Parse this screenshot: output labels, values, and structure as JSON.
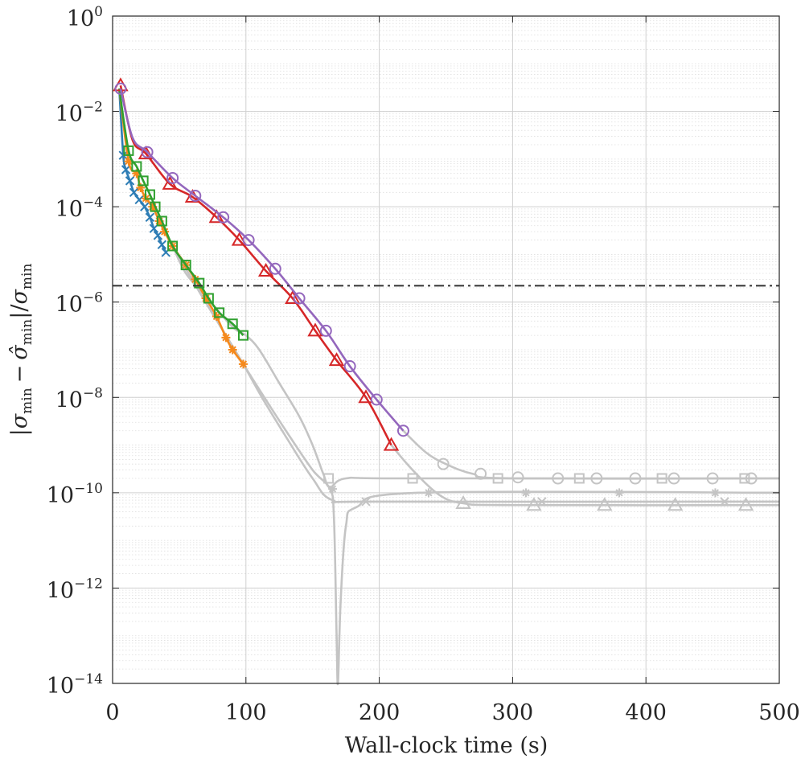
{
  "chart_data": {
    "type": "line",
    "xlabel": "Wall-clock time (s)",
    "ylabel": "|σmin − σ̂min|/σmin",
    "ylabel_parts": {
      "abs": "|",
      "sigma": "σ",
      "sigma_hat": "σ̂",
      "sub": "min",
      "minus": "−",
      "slash": "/"
    },
    "xlim": [
      0,
      500
    ],
    "ylim_log10": [
      -14,
      0
    ],
    "x_ticks": [
      0,
      100,
      200,
      300,
      400,
      500
    ],
    "x_tick_labels": [
      "0",
      "100",
      "200",
      "300",
      "400",
      "500"
    ],
    "y_ticks_log10": [
      0,
      -2,
      -4,
      -6,
      -8,
      -10,
      -12,
      -14
    ],
    "y_tick_labels": [
      "10",
      "10",
      "10",
      "10",
      "10",
      "10",
      "10",
      "10"
    ],
    "y_tick_exponents": [
      "0",
      "−2",
      "−4",
      "−6",
      "−8",
      "−10",
      "−12",
      "−14"
    ],
    "grid": true,
    "minor_grid": true,
    "threshold_line": {
      "y": 2.2e-06,
      "style": "dash-dot",
      "color": "#333333"
    },
    "series": [
      {
        "name": "cross",
        "color": "#2e7db5",
        "marker": "x",
        "points": [
          [
            5,
            0.03
          ],
          [
            8,
            0.0012
          ],
          [
            10,
            0.0006
          ],
          [
            13,
            0.00035
          ],
          [
            16,
            0.0002
          ],
          [
            20,
            0.00014
          ],
          [
            24,
            0.0001
          ],
          [
            28,
            6e-05
          ],
          [
            31,
            3.5e-05
          ],
          [
            34,
            2.5e-05
          ],
          [
            37,
            1.6e-05
          ],
          [
            40,
            1.1e-05
          ]
        ],
        "markers": [
          [
            8,
            0.0012
          ],
          [
            10,
            0.0006
          ],
          [
            13,
            0.00035
          ],
          [
            16,
            0.0002
          ],
          [
            20,
            0.00014
          ],
          [
            24,
            0.0001
          ],
          [
            28,
            6e-05
          ],
          [
            31,
            3.5e-05
          ],
          [
            34,
            2.5e-05
          ],
          [
            37,
            1.6e-05
          ],
          [
            40,
            1.1e-05
          ]
        ]
      },
      {
        "name": "star",
        "color": "#f5891c",
        "marker": "*",
        "points": [
          [
            5,
            0.03
          ],
          [
            12,
            0.0009
          ],
          [
            18,
            0.0005
          ],
          [
            21,
            0.00025
          ],
          [
            25,
            0.00015
          ],
          [
            30,
            0.0001
          ],
          [
            35,
            5e-05
          ],
          [
            39,
            3e-05
          ],
          [
            45,
            1.5e-05
          ],
          [
            55,
            6e-06
          ],
          [
            62,
            3e-06
          ],
          [
            70,
            1.2e-06
          ],
          [
            78,
            5e-07
          ],
          [
            85,
            1.8e-07
          ],
          [
            90,
            1e-07
          ],
          [
            98,
            5e-08
          ]
        ],
        "markers": [
          [
            12,
            0.0009
          ],
          [
            18,
            0.0005
          ],
          [
            21,
            0.00025
          ],
          [
            25,
            0.00015
          ],
          [
            30,
            0.0001
          ],
          [
            35,
            5e-05
          ],
          [
            39,
            3e-05
          ],
          [
            45,
            1.5e-05
          ],
          [
            55,
            6e-06
          ],
          [
            62,
            3e-06
          ],
          [
            70,
            1.2e-06
          ],
          [
            78,
            5e-07
          ],
          [
            85,
            1.8e-07
          ],
          [
            90,
            1e-07
          ],
          [
            98,
            5e-08
          ]
        ]
      },
      {
        "name": "square",
        "color": "#2fa02f",
        "marker": "square",
        "points": [
          [
            5,
            0.03
          ],
          [
            12,
            0.0015
          ],
          [
            18,
            0.0007
          ],
          [
            23,
            0.00035
          ],
          [
            28,
            0.00018
          ],
          [
            32,
            0.0001
          ],
          [
            37,
            5e-05
          ],
          [
            45,
            1.5e-05
          ],
          [
            55,
            6e-06
          ],
          [
            65,
            2.5e-06
          ],
          [
            72,
            1.2e-06
          ],
          [
            80,
            6e-07
          ],
          [
            90,
            3.5e-07
          ],
          [
            98,
            2e-07
          ]
        ],
        "markers": [
          [
            12,
            0.0015
          ],
          [
            18,
            0.0007
          ],
          [
            23,
            0.00035
          ],
          [
            28,
            0.00018
          ],
          [
            32,
            0.0001
          ],
          [
            37,
            5e-05
          ],
          [
            45,
            1.5e-05
          ],
          [
            55,
            6e-06
          ],
          [
            65,
            2.5e-06
          ],
          [
            72,
            1.2e-06
          ],
          [
            80,
            6e-07
          ],
          [
            90,
            3.5e-07
          ],
          [
            98,
            2e-07
          ]
        ]
      },
      {
        "name": "triangle",
        "color": "#d62728",
        "marker": "triangle",
        "points": [
          [
            6,
            0.035
          ],
          [
            15,
            0.0025
          ],
          [
            25,
            0.0013
          ],
          [
            43,
            0.0003
          ],
          [
            60,
            0.00016
          ],
          [
            78,
            6e-05
          ],
          [
            95,
            2e-05
          ],
          [
            115,
            4.5e-06
          ],
          [
            135,
            1.2e-06
          ],
          [
            152,
            2.5e-07
          ],
          [
            168,
            6e-08
          ],
          [
            190,
            1e-08
          ],
          [
            209,
            1e-09
          ]
        ],
        "markers": [
          [
            6,
            0.035
          ],
          [
            25,
            0.0013
          ],
          [
            43,
            0.0003
          ],
          [
            60,
            0.00016
          ],
          [
            78,
            6e-05
          ],
          [
            95,
            2e-05
          ],
          [
            115,
            4.5e-06
          ],
          [
            135,
            1.2e-06
          ],
          [
            152,
            2.5e-07
          ],
          [
            168,
            6e-08
          ],
          [
            190,
            1e-08
          ],
          [
            209,
            1e-09
          ]
        ]
      },
      {
        "name": "circle",
        "color": "#9467bd",
        "marker": "circle",
        "points": [
          [
            6,
            0.03
          ],
          [
            15,
            0.0028
          ],
          [
            26,
            0.0014
          ],
          [
            45,
            0.0004
          ],
          [
            62,
            0.00017
          ],
          [
            83,
            6e-05
          ],
          [
            102,
            2e-05
          ],
          [
            122,
            5e-06
          ],
          [
            140,
            1.2e-06
          ],
          [
            160,
            2.5e-07
          ],
          [
            178,
            4.5e-08
          ],
          [
            198,
            9e-09
          ],
          [
            218,
            2e-09
          ]
        ],
        "markers": [
          [
            6,
            0.03
          ],
          [
            26,
            0.0014
          ],
          [
            45,
            0.0004
          ],
          [
            62,
            0.00017
          ],
          [
            83,
            6e-05
          ],
          [
            102,
            2e-05
          ],
          [
            122,
            5e-06
          ],
          [
            140,
            1.2e-06
          ],
          [
            160,
            2.5e-07
          ],
          [
            178,
            4.5e-08
          ],
          [
            198,
            9e-09
          ],
          [
            218,
            2e-09
          ]
        ]
      }
    ],
    "gray_series": [
      {
        "name": "gray-square",
        "marker": "square",
        "points": [
          [
            45,
            1.5e-05
          ],
          [
            55,
            4e-06
          ],
          [
            70,
            1.3e-06
          ],
          [
            90,
            3e-07
          ],
          [
            100,
            2e-07
          ],
          [
            110,
            1e-07
          ],
          [
            125,
            2e-08
          ],
          [
            140,
            4e-09
          ],
          [
            150,
            1e-09
          ],
          [
            158,
            2.5e-10
          ],
          [
            163,
            1.3e-10
          ],
          [
            175,
            2e-10
          ],
          [
            220,
            2e-10
          ],
          [
            500,
            2e-10
          ]
        ],
        "markers": [
          [
            162,
            2e-10
          ],
          [
            225,
            2e-10
          ],
          [
            289,
            2e-10
          ],
          [
            350,
            2e-10
          ],
          [
            412,
            2e-10
          ],
          [
            474,
            2e-10
          ]
        ]
      },
      {
        "name": "gray-star",
        "marker": "*",
        "points": [
          [
            45,
            1.5e-05
          ],
          [
            55,
            5e-06
          ],
          [
            68,
            1.2e-06
          ],
          [
            85,
            2e-07
          ],
          [
            98,
            5e-08
          ],
          [
            112,
            1.2e-08
          ],
          [
            130,
            2e-09
          ],
          [
            150,
            3e-10
          ],
          [
            163,
            1.2e-10
          ],
          [
            166,
            3e-11
          ],
          [
            168,
            1e-13
          ],
          [
            169,
            1e-14
          ],
          [
            171,
            5e-13
          ],
          [
            175,
            2e-11
          ],
          [
            183,
            5e-11
          ],
          [
            230,
            1e-10
          ],
          [
            500,
            1e-10
          ]
        ],
        "markers": [
          [
            165,
            1.2e-10
          ],
          [
            237,
            1e-10
          ],
          [
            310,
            1e-10
          ],
          [
            380,
            1e-10
          ],
          [
            452,
            1e-10
          ]
        ]
      },
      {
        "name": "gray-cross",
        "marker": "x",
        "points": [
          [
            45,
            1.5e-05
          ],
          [
            55,
            5e-06
          ],
          [
            68,
            1.2e-06
          ],
          [
            85,
            2e-07
          ],
          [
            98,
            5e-08
          ],
          [
            112,
            1e-08
          ],
          [
            130,
            1.5e-09
          ],
          [
            150,
            2e-10
          ],
          [
            165,
            7e-11
          ],
          [
            200,
            6.5e-11
          ],
          [
            500,
            6.5e-11
          ]
        ],
        "markers": [
          [
            190,
            6.5e-11
          ],
          [
            322,
            6.5e-11
          ],
          [
            459,
            6.5e-11
          ]
        ]
      },
      {
        "name": "gray-triangle",
        "marker": "triangle",
        "points": [
          [
            209,
            1e-09
          ],
          [
            225,
            3e-10
          ],
          [
            245,
            9e-11
          ],
          [
            263,
            6e-11
          ],
          [
            300,
            5.5e-11
          ],
          [
            500,
            5.5e-11
          ]
        ],
        "markers": [
          [
            263,
            6e-11
          ],
          [
            316,
            5.5e-11
          ],
          [
            369,
            5.5e-11
          ],
          [
            422,
            5.5e-11
          ],
          [
            475,
            5.5e-11
          ]
        ]
      },
      {
        "name": "gray-circle",
        "marker": "circle",
        "points": [
          [
            218,
            2e-09
          ],
          [
            235,
            7e-10
          ],
          [
            250,
            4e-10
          ],
          [
            270,
            2.5e-10
          ],
          [
            300,
            2e-10
          ],
          [
            500,
            2e-10
          ]
        ],
        "markers": [
          [
            248,
            4e-10
          ],
          [
            276,
            2.5e-10
          ],
          [
            304,
            2.1e-10
          ],
          [
            334,
            2e-10
          ],
          [
            363,
            2e-10
          ],
          [
            392,
            2e-10
          ],
          [
            421,
            2e-10
          ],
          [
            450,
            2e-10
          ],
          [
            479,
            2e-10
          ]
        ]
      }
    ],
    "gray_color": "#c4c4c4"
  }
}
